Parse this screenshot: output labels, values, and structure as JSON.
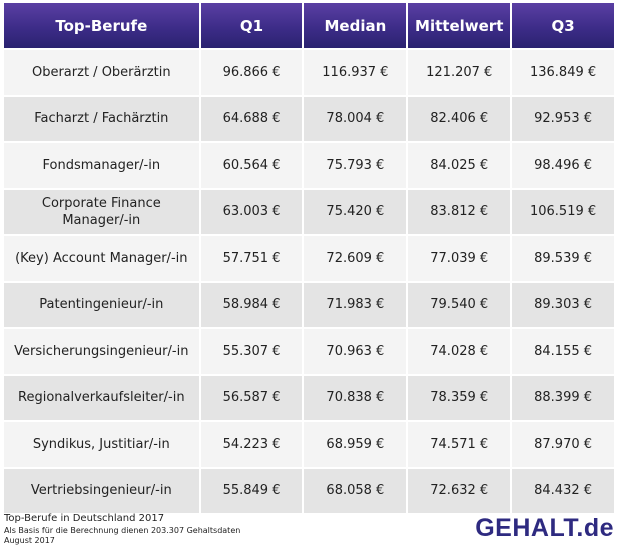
{
  "chart_data": {
    "type": "table",
    "columns": [
      "Top-Berufe",
      "Q1",
      "Median",
      "Mittelwert",
      "Q3"
    ],
    "rows": [
      [
        "Oberarzt / Oberärztin",
        "96.866 €",
        "116.937 €",
        "121.207 €",
        "136.849 €"
      ],
      [
        "Facharzt / Fachärztin",
        "64.688 €",
        "78.004 €",
        "82.406 €",
        "92.953 €"
      ],
      [
        "Fondsmanager/-in",
        "60.564 €",
        "75.793 €",
        "84.025 €",
        "98.496 €"
      ],
      [
        "Corporate Finance Manager/-in",
        "63.003 €",
        "75.420 €",
        "83.812 €",
        "106.519 €"
      ],
      [
        "(Key) Account Manager/-in",
        "57.751 €",
        "72.609 €",
        "77.039 €",
        "89.539 €"
      ],
      [
        "Patentingenieur/-in",
        "58.984 €",
        "71.983 €",
        "79.540 €",
        "89.303 €"
      ],
      [
        "Versicherungsingenieur/-in",
        "55.307 €",
        "70.963 €",
        "74.028 €",
        "84.155 €"
      ],
      [
        "Regionalverkaufsleiter/-in",
        "56.587 €",
        "70.838 €",
        "78.359 €",
        "88.399 €"
      ],
      [
        "Syndikus, Justitiar/-in",
        "54.223 €",
        "68.959 €",
        "74.571 €",
        "87.970 €"
      ],
      [
        "Vertriebsingenieur/-in",
        "55.849 €",
        "68.058 €",
        "72.632 €",
        "84.432 €"
      ]
    ]
  },
  "footer": {
    "title": "Top-Berufe in Deutschland 2017",
    "subtitle": "Als Basis für die Berechnung dienen 203.307 Gehaltsdaten",
    "date": "August 2017"
  },
  "brand": "GEHALT.de",
  "colors": {
    "header_bg": "#3d2c88",
    "row_light": "#f4f4f4",
    "row_dark": "#e4e4e4",
    "brand": "#2e2a80"
  }
}
